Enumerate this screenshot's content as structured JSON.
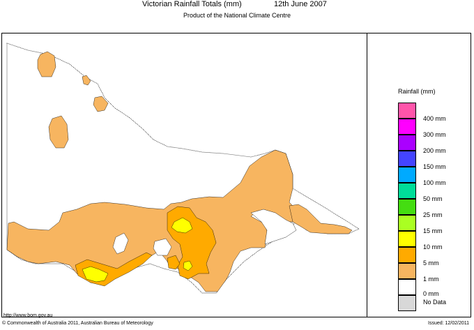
{
  "header": {
    "title": "Victorian Rainfall Totals (mm)",
    "date": "12th June 2007",
    "subtitle": "Product of the National Climate Centre"
  },
  "legend": {
    "title": "Rainfall (mm)",
    "items": [
      {
        "label": "400 mm",
        "color": "#ff55aa"
      },
      {
        "label": "300 mm",
        "color": "#ff00ff"
      },
      {
        "label": "200 mm",
        "color": "#aa00ff"
      },
      {
        "label": "150 mm",
        "color": "#4444ff"
      },
      {
        "label": "100 mm",
        "color": "#00aaff"
      },
      {
        "label": "50 mm",
        "color": "#00dd99"
      },
      {
        "label": "25 mm",
        "color": "#44dd11"
      },
      {
        "label": "15 mm",
        "color": "#aaff22"
      },
      {
        "label": "10 mm",
        "color": "#ffff00"
      },
      {
        "label": "5 mm",
        "color": "#ffaa00"
      },
      {
        "label": "1 mm",
        "color": "#f7b560"
      },
      {
        "label": "0 mm",
        "color": "#ffffff"
      }
    ],
    "no_data": {
      "label": "No Data",
      "color": "#d8d8d8"
    }
  },
  "footer": {
    "url": "http://www.bom.gov.au",
    "copyright": "© Commonwealth of Australia 2011, Australian Bureau of Meteorology",
    "issued": "Issued: 12/02/2011"
  },
  "map_colors": {
    "light": "#f7b560",
    "medium": "#ffaa00",
    "heavy": "#ffff00",
    "background": "#ffffff",
    "outline": "#000000"
  }
}
